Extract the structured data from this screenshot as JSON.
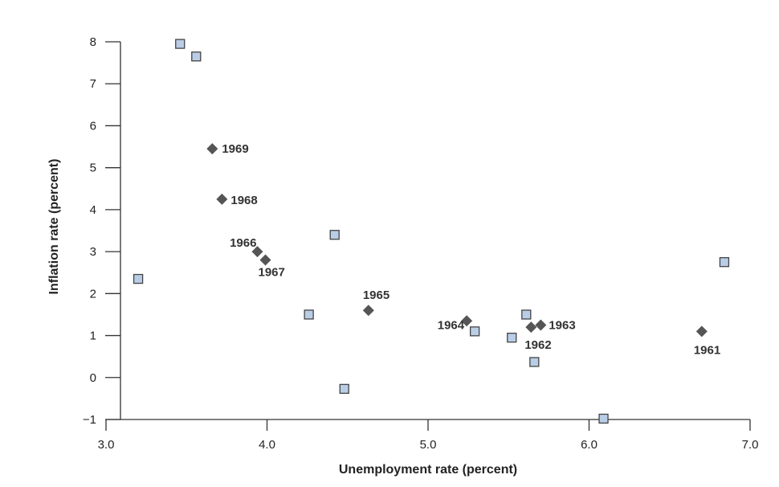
{
  "chart_data": {
    "type": "scatter",
    "title": "",
    "xlabel": "Unemployment rate (percent)",
    "ylabel": "Inflation rate (percent)",
    "xlim": [
      3.0,
      7.0
    ],
    "ylim": [
      -1,
      8
    ],
    "x_ticks": [
      "3.0",
      "4.0",
      "5.0",
      "6.0",
      "7.0"
    ],
    "y_ticks": [
      "−1",
      "0",
      "1",
      "2",
      "3",
      "4",
      "5",
      "6",
      "7",
      "8"
    ],
    "grid": false,
    "colors": {
      "diamond": "#555555",
      "square_fill": "#b9cde6",
      "square_stroke": "#444444",
      "axis": "#333333"
    },
    "series": [
      {
        "marker": "diamond",
        "points": [
          {
            "x": 6.7,
            "y": 1.1,
            "label": "1961"
          },
          {
            "x": 5.64,
            "y": 1.2,
            "label": "1962"
          },
          {
            "x": 5.7,
            "y": 1.25,
            "label": "1963"
          },
          {
            "x": 5.24,
            "y": 1.35,
            "label": "1964"
          },
          {
            "x": 4.63,
            "y": 1.6,
            "label": "1965"
          },
          {
            "x": 3.94,
            "y": 3.0,
            "label": "1966"
          },
          {
            "x": 3.99,
            "y": 2.8,
            "label": "1967"
          },
          {
            "x": 3.72,
            "y": 4.25,
            "label": "1968"
          },
          {
            "x": 3.66,
            "y": 5.45,
            "label": "1969"
          }
        ]
      },
      {
        "marker": "square",
        "points": [
          {
            "x": 3.46,
            "y": 7.95
          },
          {
            "x": 3.56,
            "y": 7.65
          },
          {
            "x": 3.2,
            "y": 2.35
          },
          {
            "x": 4.26,
            "y": 1.5
          },
          {
            "x": 4.42,
            "y": 3.4
          },
          {
            "x": 4.48,
            "y": -0.27
          },
          {
            "x": 5.29,
            "y": 1.1
          },
          {
            "x": 5.52,
            "y": 0.95
          },
          {
            "x": 5.61,
            "y": 1.5
          },
          {
            "x": 5.66,
            "y": 0.37
          },
          {
            "x": 6.09,
            "y": -0.98
          },
          {
            "x": 6.84,
            "y": 2.75
          }
        ]
      }
    ]
  }
}
